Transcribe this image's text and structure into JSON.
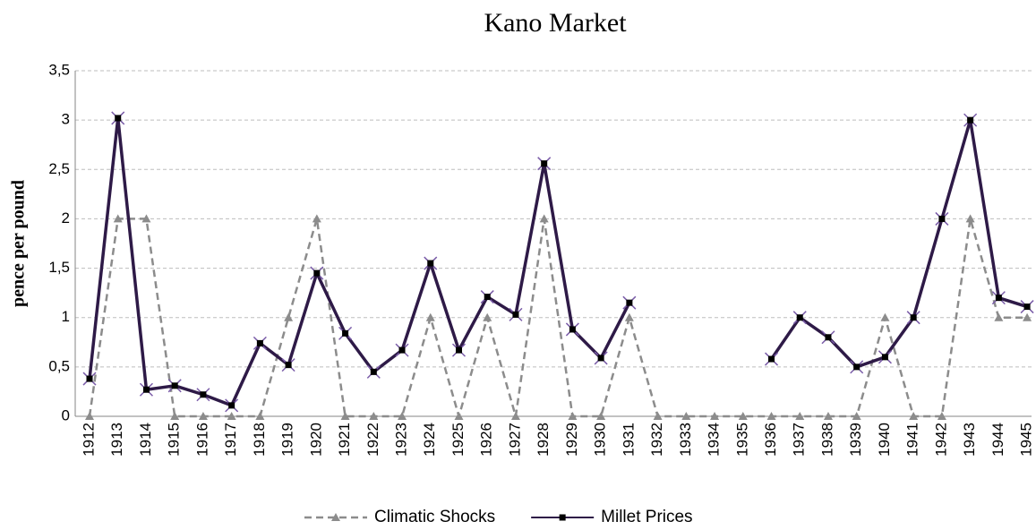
{
  "chart_data": {
    "type": "line",
    "title": "Kano Market",
    "y_label": "pence per pound",
    "categories": [
      "1912",
      "1913",
      "1914",
      "1915",
      "1916",
      "1917",
      "1918",
      "1919",
      "1920",
      "1921",
      "1922",
      "1923",
      "1924",
      "1925",
      "1926",
      "1927",
      "1928",
      "1929",
      "1930",
      "1931",
      "1932",
      "1933",
      "1934",
      "1935",
      "1936",
      "1937",
      "1938",
      "1939",
      "1940",
      "1941",
      "1942",
      "1943",
      "1944",
      "1945"
    ],
    "series": [
      {
        "name": "Climatic Shocks",
        "color": "#8c8c8c",
        "dashed": true,
        "marker": "triangle",
        "values": [
          0,
          2,
          2,
          0,
          0,
          0,
          0,
          1,
          2,
          0,
          0,
          0,
          1,
          0,
          1,
          0,
          2,
          0,
          0,
          1,
          0,
          0,
          0,
          0,
          0,
          0,
          0,
          0,
          1,
          0,
          0,
          2,
          1,
          1
        ]
      },
      {
        "name": "Millet Prices",
        "color": "#2e1a47",
        "dashed": false,
        "marker": "square",
        "values": [
          0.38,
          3.02,
          0.27,
          0.31,
          0.22,
          0.11,
          0.74,
          0.52,
          1.45,
          0.84,
          0.45,
          0.67,
          1.55,
          0.67,
          1.21,
          1.03,
          2.56,
          0.88,
          0.59,
          1.15,
          null,
          null,
          null,
          null,
          0.58,
          1.0,
          0.8,
          0.5,
          0.6,
          1.0,
          2.0,
          3.0,
          1.2,
          1.11
        ]
      }
    ],
    "ylim": [
      0,
      3.5
    ],
    "yticks": [
      0,
      {
        "value": 0.5,
        "label": "0,5"
      },
      1,
      {
        "value": 1.5,
        "label": "1,5"
      },
      2,
      {
        "value": 2.5,
        "label": "2,5"
      },
      3,
      {
        "value": 3.5,
        "label": "3,5"
      }
    ],
    "grid": true,
    "legend": "bottom"
  }
}
